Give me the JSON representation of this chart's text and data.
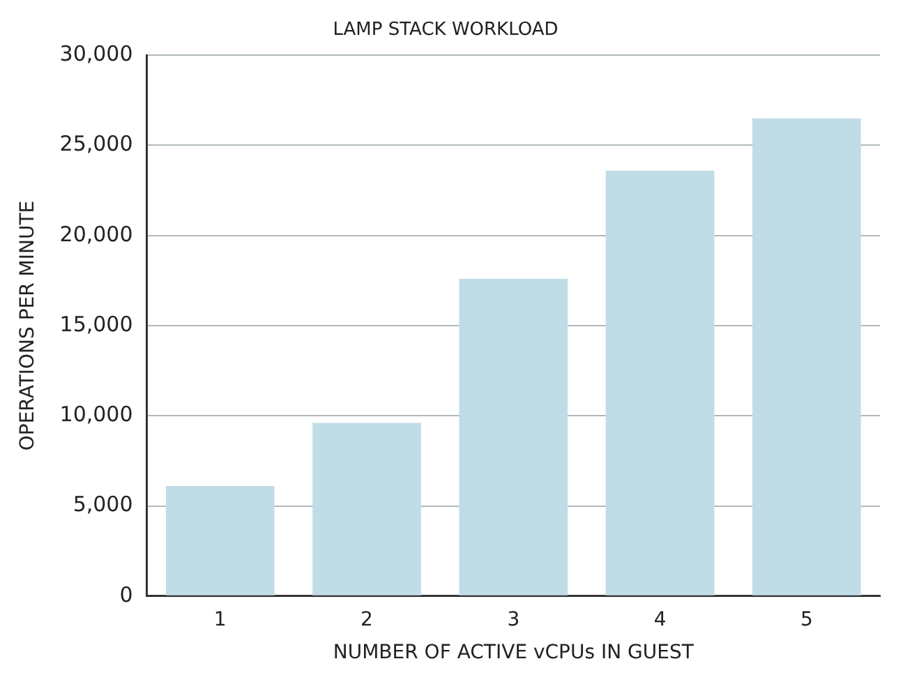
{
  "chart_data": {
    "type": "bar",
    "title": "LAMP STACK WORKLOAD",
    "xlabel": "NUMBER OF ACTIVE vCPUs IN GUEST",
    "ylabel": "OPERATIONS PER MINUTE",
    "categories": [
      "1",
      "2",
      "3",
      "4",
      "5"
    ],
    "values": [
      6100,
      9600,
      17600,
      23600,
      26500
    ],
    "color": "#c0dce7",
    "ylim": [
      0,
      30000
    ],
    "yticks": [
      {
        "value": 0,
        "label": "0"
      },
      {
        "value": 5000,
        "label": "5,000"
      },
      {
        "value": 10000,
        "label": "10,000"
      },
      {
        "value": 15000,
        "label": "15,000"
      },
      {
        "value": 20000,
        "label": "20,000"
      },
      {
        "value": 25000,
        "label": "25,000"
      },
      {
        "value": 30000,
        "label": "30,000"
      }
    ],
    "grid": "y",
    "legend": false
  }
}
